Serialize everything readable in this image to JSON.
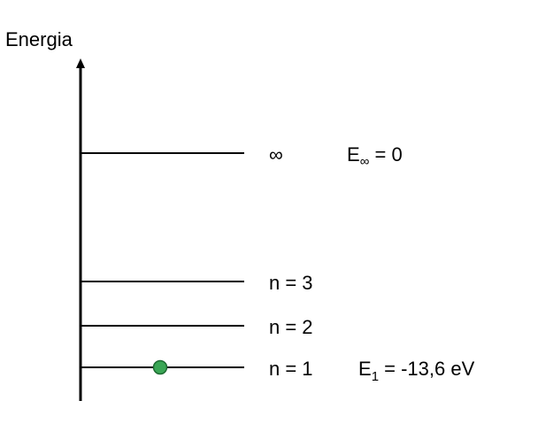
{
  "axis": {
    "label": "Energia"
  },
  "levels": [
    {
      "n_label": "∞",
      "energy_symbol": "E",
      "energy_subscript": "∞",
      "energy_value": " = 0"
    },
    {
      "n_label": "n = 3"
    },
    {
      "n_label": "n = 2"
    },
    {
      "n_label": "n = 1",
      "energy_symbol": "E",
      "energy_subscript": "1",
      "energy_value": " = -13,6 eV"
    }
  ],
  "electron": {
    "level": "n = 1",
    "color": "#3aa655",
    "stroke": "#1e6b32"
  }
}
